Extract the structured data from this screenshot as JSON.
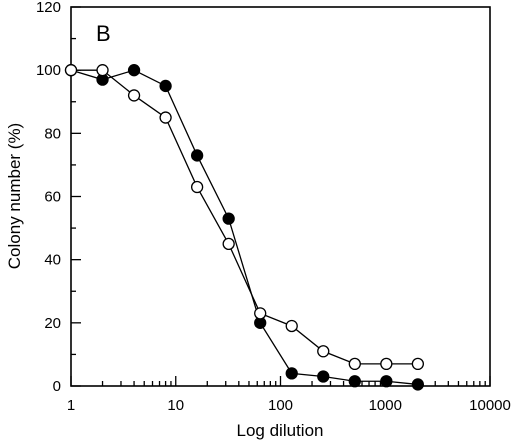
{
  "chart_data": {
    "type": "line",
    "panel_label": "B",
    "title": "",
    "xlabel": "Log dilution",
    "ylabel": "Colony number (%)",
    "x_scale": "log",
    "xlim": [
      1,
      10000
    ],
    "ylim": [
      0,
      120
    ],
    "x_ticks": [
      1,
      10,
      100,
      1000,
      10000
    ],
    "x_tick_labels": [
      "1",
      "10",
      "100",
      "1000",
      "10000"
    ],
    "y_ticks": [
      0,
      20,
      40,
      60,
      80,
      100,
      120
    ],
    "y_tick_labels": [
      "0",
      "20",
      "40",
      "60",
      "80",
      "100",
      "120"
    ],
    "grid": false,
    "legend": "none",
    "series": [
      {
        "marker": "filled-circle",
        "color": "#000000",
        "x": [
          1,
          2,
          4,
          8,
          16,
          32,
          64,
          128,
          256,
          512,
          1024,
          2048
        ],
        "y": [
          100,
          97,
          100,
          95,
          73,
          53,
          20,
          4,
          3,
          1.5,
          1.5,
          0.5
        ]
      },
      {
        "marker": "open-circle",
        "color": "#000000",
        "x": [
          1,
          2,
          4,
          8,
          16,
          32,
          64,
          128,
          256,
          512,
          1024,
          2048
        ],
        "y": [
          100,
          100,
          92,
          85,
          63,
          45,
          23,
          19,
          11,
          7,
          7,
          7
        ]
      }
    ]
  }
}
